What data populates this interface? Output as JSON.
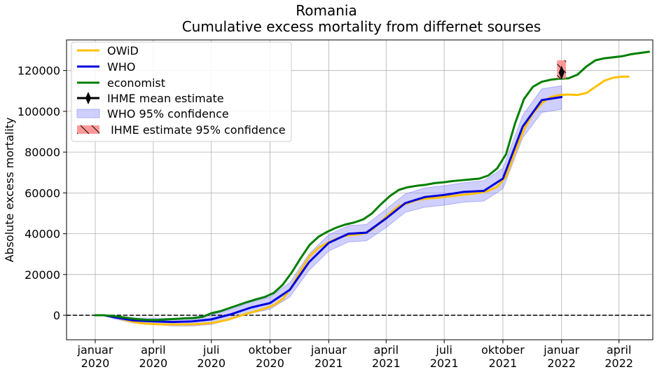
{
  "chart_data": {
    "type": "line",
    "title": "Romania",
    "subtitle": "Cumulative excess mortality from differnet sourses",
    "ylabel": "Absolute excess mortality",
    "xlabel": "",
    "x_range": [
      "2019-11-17",
      "2022-05-24"
    ],
    "ylim": [
      -12000,
      135000
    ],
    "grid": true,
    "legend_position": "top-left",
    "x_ticks": [
      {
        "date": "2020-01-01",
        "line1": "januar",
        "line2": "2020"
      },
      {
        "date": "2020-04-01",
        "line1": "april",
        "line2": "2020"
      },
      {
        "date": "2020-07-01",
        "line1": "juli",
        "line2": "2020"
      },
      {
        "date": "2020-10-01",
        "line1": "oktober",
        "line2": "2020"
      },
      {
        "date": "2021-01-01",
        "line1": "januar",
        "line2": "2021"
      },
      {
        "date": "2021-04-01",
        "line1": "april",
        "line2": "2021"
      },
      {
        "date": "2021-07-01",
        "line1": "juli",
        "line2": "2021"
      },
      {
        "date": "2021-10-01",
        "line1": "oktober",
        "line2": "2021"
      },
      {
        "date": "2022-01-01",
        "line1": "januar",
        "line2": "2022"
      },
      {
        "date": "2022-04-01",
        "line1": "april",
        "line2": "2022"
      }
    ],
    "y_ticks": [
      0,
      20000,
      40000,
      60000,
      80000,
      100000,
      120000
    ],
    "reference_line": {
      "y": 0,
      "style": "dashed",
      "color": "#000000"
    },
    "series": [
      {
        "name": "OWiD",
        "color": "#ffc000",
        "points": [
          [
            "2020-01-01",
            0
          ],
          [
            "2020-01-15",
            0
          ],
          [
            "2020-01-29",
            -500
          ],
          [
            "2020-02-12",
            -1800
          ],
          [
            "2020-02-26",
            -3000
          ],
          [
            "2020-03-11",
            -3800
          ],
          [
            "2020-03-25",
            -4200
          ],
          [
            "2020-04-08",
            -4400
          ],
          [
            "2020-04-22",
            -4500
          ],
          [
            "2020-05-06",
            -4500
          ],
          [
            "2020-05-20",
            -4500
          ],
          [
            "2020-06-03",
            -4400
          ],
          [
            "2020-06-17",
            -4200
          ],
          [
            "2020-07-01",
            -3800
          ],
          [
            "2020-07-15",
            -3000
          ],
          [
            "2020-07-29",
            -2000
          ],
          [
            "2020-08-12",
            -500
          ],
          [
            "2020-08-26",
            800
          ],
          [
            "2020-09-09",
            2000
          ],
          [
            "2020-09-23",
            3300
          ],
          [
            "2020-10-07",
            5000
          ],
          [
            "2020-10-21",
            8000
          ],
          [
            "2020-11-04",
            14000
          ],
          [
            "2020-11-18",
            22000
          ],
          [
            "2020-12-02",
            29000
          ],
          [
            "2020-12-16",
            33000
          ],
          [
            "2020-12-30",
            35500
          ],
          [
            "2021-01-13",
            37500
          ],
          [
            "2021-01-27",
            39000
          ],
          [
            "2021-02-10",
            39500
          ],
          [
            "2021-02-24",
            40000
          ],
          [
            "2021-03-10",
            42000
          ],
          [
            "2021-03-24",
            46000
          ],
          [
            "2021-04-07",
            50000
          ],
          [
            "2021-04-21",
            53500
          ],
          [
            "2021-05-05",
            55000
          ],
          [
            "2021-05-19",
            56500
          ],
          [
            "2021-06-02",
            57200
          ],
          [
            "2021-06-16",
            57500
          ],
          [
            "2021-06-30",
            58000
          ],
          [
            "2021-07-14",
            58500
          ],
          [
            "2021-07-28",
            59000
          ],
          [
            "2021-08-11",
            59500
          ],
          [
            "2021-08-25",
            60000
          ],
          [
            "2021-09-08",
            61000
          ],
          [
            "2021-09-22",
            63000
          ],
          [
            "2021-10-06",
            68000
          ],
          [
            "2021-10-20",
            80000
          ],
          [
            "2021-11-03",
            91000
          ],
          [
            "2021-11-17",
            99000
          ],
          [
            "2021-12-01",
            104000
          ],
          [
            "2021-12-15",
            107000
          ],
          [
            "2021-12-29",
            108000
          ],
          [
            "2022-01-12",
            108200
          ],
          [
            "2022-01-26",
            108000
          ],
          [
            "2022-02-09",
            109000
          ],
          [
            "2022-02-23",
            112000
          ],
          [
            "2022-03-09",
            115000
          ],
          [
            "2022-03-23",
            116500
          ],
          [
            "2022-04-06",
            117000
          ],
          [
            "2022-04-16",
            117000
          ]
        ]
      },
      {
        "name": "WHO",
        "color": "#0000dd",
        "points": [
          [
            "2020-01-01",
            0
          ],
          [
            "2020-01-15",
            0
          ],
          [
            "2020-02-01",
            -1000
          ],
          [
            "2020-03-01",
            -2500
          ],
          [
            "2020-04-01",
            -3000
          ],
          [
            "2020-05-01",
            -3300
          ],
          [
            "2020-06-01",
            -3000
          ],
          [
            "2020-07-01",
            -2000
          ],
          [
            "2020-08-01",
            500
          ],
          [
            "2020-09-01",
            3800
          ],
          [
            "2020-10-01",
            6000
          ],
          [
            "2020-11-01",
            12500
          ],
          [
            "2020-12-01",
            26000
          ],
          [
            "2021-01-01",
            35500
          ],
          [
            "2021-02-01",
            40000
          ],
          [
            "2021-03-01",
            40500
          ],
          [
            "2021-04-01",
            47500
          ],
          [
            "2021-05-01",
            55000
          ],
          [
            "2021-06-01",
            58000
          ],
          [
            "2021-07-01",
            59000
          ],
          [
            "2021-08-01",
            60500
          ],
          [
            "2021-09-01",
            61000
          ],
          [
            "2021-10-01",
            67000
          ],
          [
            "2021-11-01",
            92500
          ],
          [
            "2021-12-01",
            105500
          ],
          [
            "2022-01-01",
            107000
          ]
        ],
        "ci_lower": [
          [
            "2020-01-01",
            0
          ],
          [
            "2020-01-15",
            0
          ],
          [
            "2020-02-01",
            -1800
          ],
          [
            "2020-03-01",
            -3800
          ],
          [
            "2020-04-01",
            -4500
          ],
          [
            "2020-05-01",
            -5200
          ],
          [
            "2020-06-01",
            -5200
          ],
          [
            "2020-07-01",
            -4500
          ],
          [
            "2020-08-01",
            -2000
          ],
          [
            "2020-09-01",
            1000
          ],
          [
            "2020-10-01",
            3000
          ],
          [
            "2020-11-01",
            9000
          ],
          [
            "2020-12-01",
            22000
          ],
          [
            "2021-01-01",
            31500
          ],
          [
            "2021-02-01",
            36000
          ],
          [
            "2021-03-01",
            36500
          ],
          [
            "2021-04-01",
            43000
          ],
          [
            "2021-05-01",
            50500
          ],
          [
            "2021-06-01",
            53000
          ],
          [
            "2021-07-01",
            54000
          ],
          [
            "2021-08-01",
            55500
          ],
          [
            "2021-09-01",
            56000
          ],
          [
            "2021-10-01",
            62000
          ],
          [
            "2021-11-01",
            87000
          ],
          [
            "2021-12-01",
            99500
          ],
          [
            "2022-01-01",
            101000
          ]
        ],
        "ci_upper": [
          [
            "2020-01-01",
            0
          ],
          [
            "2020-01-15",
            0
          ],
          [
            "2020-02-01",
            -300
          ],
          [
            "2020-03-01",
            -1300
          ],
          [
            "2020-04-01",
            -1500
          ],
          [
            "2020-05-01",
            -1500
          ],
          [
            "2020-06-01",
            -900
          ],
          [
            "2020-07-01",
            300
          ],
          [
            "2020-08-01",
            3000
          ],
          [
            "2020-09-01",
            6500
          ],
          [
            "2020-10-01",
            9000
          ],
          [
            "2020-11-01",
            16000
          ],
          [
            "2020-12-01",
            30000
          ],
          [
            "2021-01-01",
            39500
          ],
          [
            "2021-02-01",
            44000
          ],
          [
            "2021-03-01",
            44500
          ],
          [
            "2021-04-01",
            52000
          ],
          [
            "2021-05-01",
            59500
          ],
          [
            "2021-06-01",
            62500
          ],
          [
            "2021-07-01",
            63500
          ],
          [
            "2021-08-01",
            65000
          ],
          [
            "2021-09-01",
            66000
          ],
          [
            "2021-10-01",
            72000
          ],
          [
            "2021-11-01",
            98000
          ],
          [
            "2021-12-01",
            111000
          ],
          [
            "2022-01-01",
            112500
          ]
        ]
      },
      {
        "name": "economist",
        "color": "#007f00",
        "points": [
          [
            "2020-01-01",
            0
          ],
          [
            "2020-01-15",
            0
          ],
          [
            "2020-01-29",
            -300
          ],
          [
            "2020-02-12",
            -900
          ],
          [
            "2020-02-26",
            -1500
          ],
          [
            "2020-03-11",
            -2000
          ],
          [
            "2020-03-25",
            -2300
          ],
          [
            "2020-04-08",
            -2300
          ],
          [
            "2020-04-22",
            -2000
          ],
          [
            "2020-05-06",
            -1800
          ],
          [
            "2020-05-20",
            -1500
          ],
          [
            "2020-06-03",
            -1400
          ],
          [
            "2020-06-17",
            -800
          ],
          [
            "2020-07-01",
            1000
          ],
          [
            "2020-07-15",
            2000
          ],
          [
            "2020-07-29",
            3500
          ],
          [
            "2020-08-12",
            5000
          ],
          [
            "2020-08-26",
            6500
          ],
          [
            "2020-09-09",
            7800
          ],
          [
            "2020-09-23",
            9000
          ],
          [
            "2020-10-07",
            11000
          ],
          [
            "2020-10-21",
            15000
          ],
          [
            "2020-11-04",
            21000
          ],
          [
            "2020-11-18",
            28000
          ],
          [
            "2020-12-02",
            34500
          ],
          [
            "2020-12-16",
            38500
          ],
          [
            "2020-12-30",
            41000
          ],
          [
            "2021-01-13",
            43000
          ],
          [
            "2021-01-27",
            44500
          ],
          [
            "2021-02-10",
            45500
          ],
          [
            "2021-02-24",
            47000
          ],
          [
            "2021-03-10",
            50000
          ],
          [
            "2021-03-24",
            54500
          ],
          [
            "2021-04-07",
            58500
          ],
          [
            "2021-04-21",
            61500
          ],
          [
            "2021-05-05",
            62800
          ],
          [
            "2021-05-19",
            63500
          ],
          [
            "2021-06-02",
            64000
          ],
          [
            "2021-06-16",
            64800
          ],
          [
            "2021-06-30",
            65200
          ],
          [
            "2021-07-14",
            65800
          ],
          [
            "2021-07-28",
            66200
          ],
          [
            "2021-08-11",
            66600
          ],
          [
            "2021-08-25",
            67000
          ],
          [
            "2021-09-08",
            68500
          ],
          [
            "2021-09-22",
            72000
          ],
          [
            "2021-10-06",
            79000
          ],
          [
            "2021-10-20",
            94000
          ],
          [
            "2021-11-03",
            106000
          ],
          [
            "2021-11-17",
            112000
          ],
          [
            "2021-12-01",
            114500
          ],
          [
            "2021-12-15",
            115500
          ],
          [
            "2021-12-29",
            116000
          ],
          [
            "2022-01-12",
            116200
          ],
          [
            "2022-01-26",
            118000
          ],
          [
            "2022-02-09",
            122000
          ],
          [
            "2022-02-23",
            125000
          ],
          [
            "2022-03-09",
            126000
          ],
          [
            "2022-03-23",
            126500
          ],
          [
            "2022-04-06",
            127000
          ],
          [
            "2022-04-20",
            128000
          ],
          [
            "2022-05-04",
            128600
          ],
          [
            "2022-05-18",
            129200
          ]
        ]
      },
      {
        "name": "IHME mean estimate",
        "color": "#000000",
        "marker": "thin-diamond",
        "points": [
          [
            "2022-01-01",
            119000
          ]
        ]
      },
      {
        "name": "WHO 95% confidence",
        "color": "#7777ff",
        "kind": "band"
      },
      {
        "name": " IHME estimate 95% confidence",
        "color": "#ff8080",
        "kind": "box",
        "x_range": [
          "2021-12-25",
          "2022-01-08"
        ],
        "y_range": [
          116000,
          125000
        ]
      }
    ]
  }
}
